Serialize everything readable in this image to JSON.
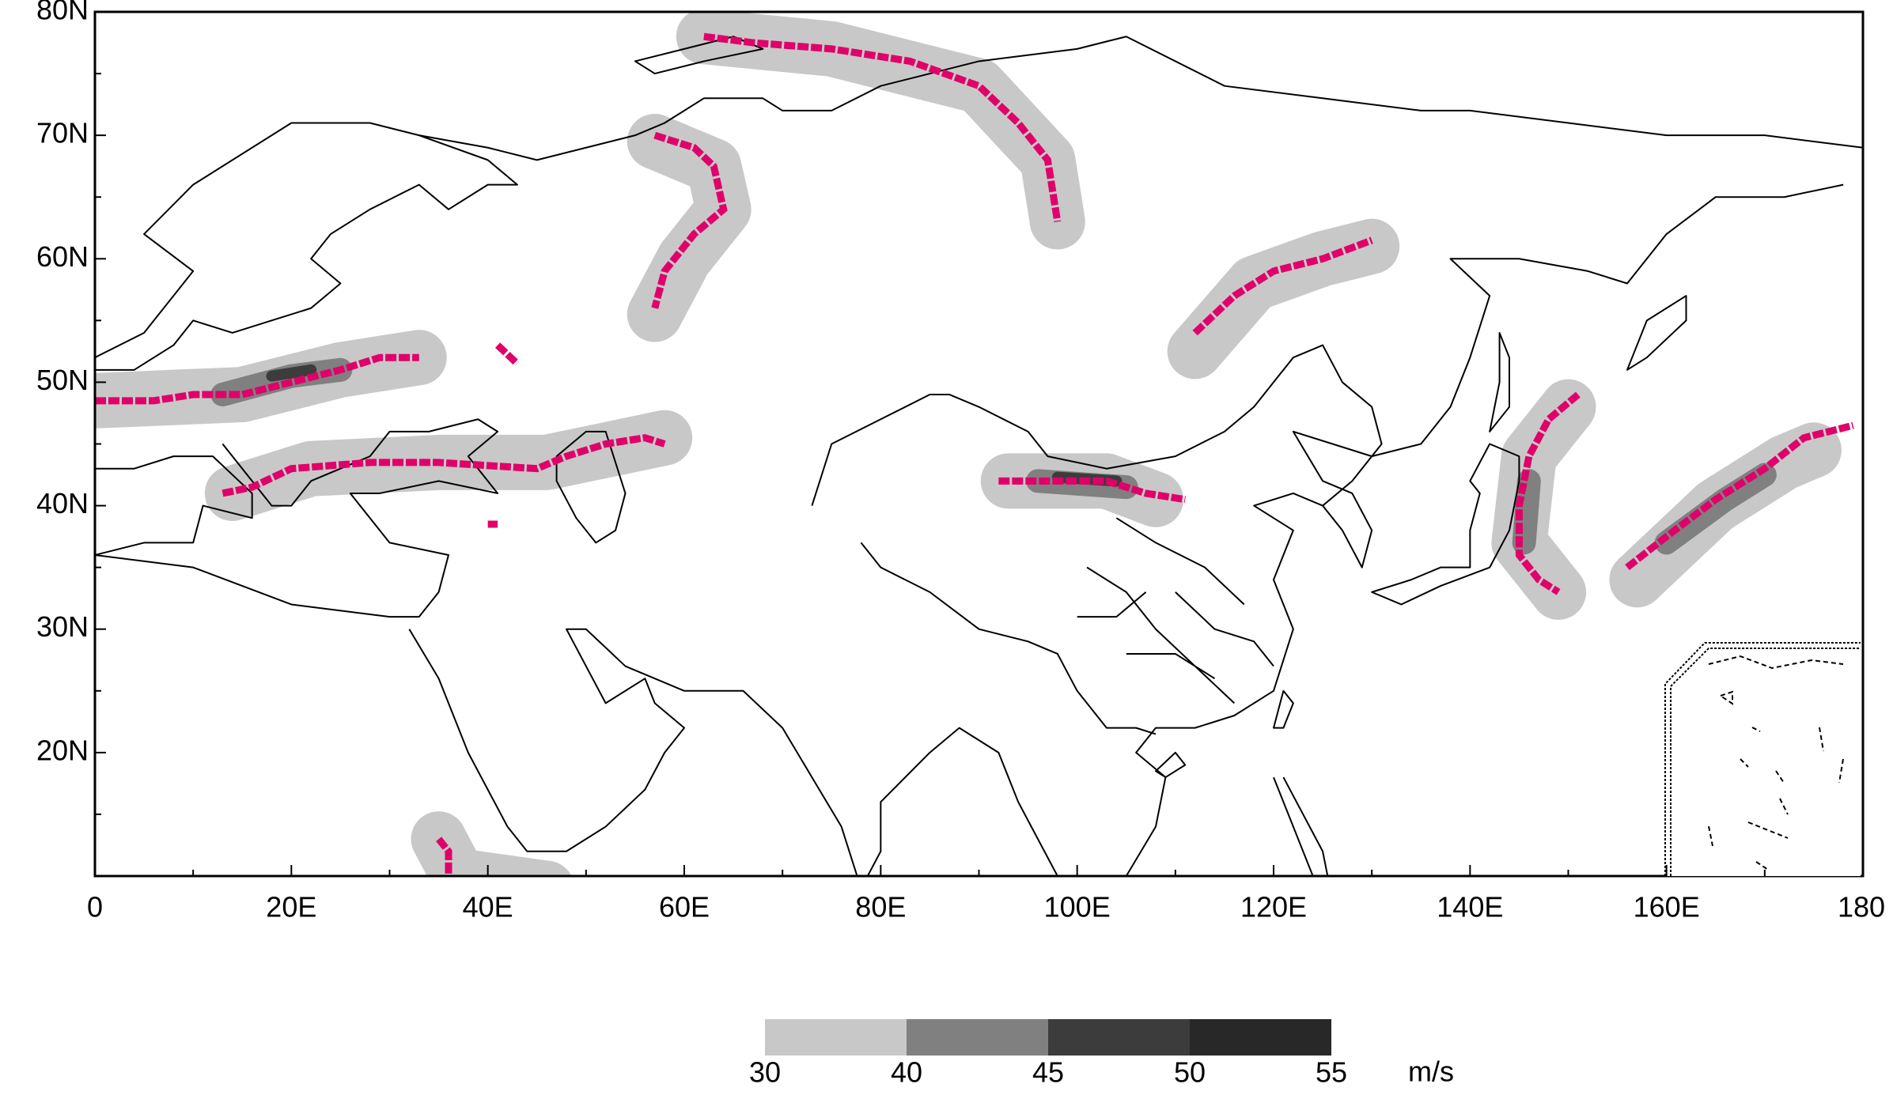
{
  "map": {
    "lat_range": [
      10,
      80
    ],
    "lon_range": [
      0,
      180
    ],
    "lat_ticks": [
      {
        "value": 80,
        "label": "80N"
      },
      {
        "value": 70,
        "label": "70N"
      },
      {
        "value": 60,
        "label": "60N"
      },
      {
        "value": 50,
        "label": "50N"
      },
      {
        "value": 40,
        "label": "40N"
      },
      {
        "value": 30,
        "label": "30N"
      },
      {
        "value": 20,
        "label": "20N"
      }
    ],
    "lon_ticks": [
      0,
      {
        "value": 20,
        "label": "20E"
      },
      {
        "value": 40,
        "label": "40E"
      },
      {
        "value": 60,
        "label": "60E"
      },
      {
        "value": 80,
        "label": "80E"
      },
      {
        "value": 100,
        "label": "100E"
      },
      {
        "value": 120,
        "label": "120E"
      },
      {
        "value": 140,
        "label": "140E"
      },
      {
        "value": 160,
        "label": "160E"
      },
      180
    ]
  },
  "colorbar": {
    "levels": [
      30,
      40,
      45,
      50,
      55
    ],
    "colors": [
      "#c8c8c8",
      "#808080",
      "#3c3c3c",
      "#282828"
    ],
    "unit": "m/s"
  }
}
